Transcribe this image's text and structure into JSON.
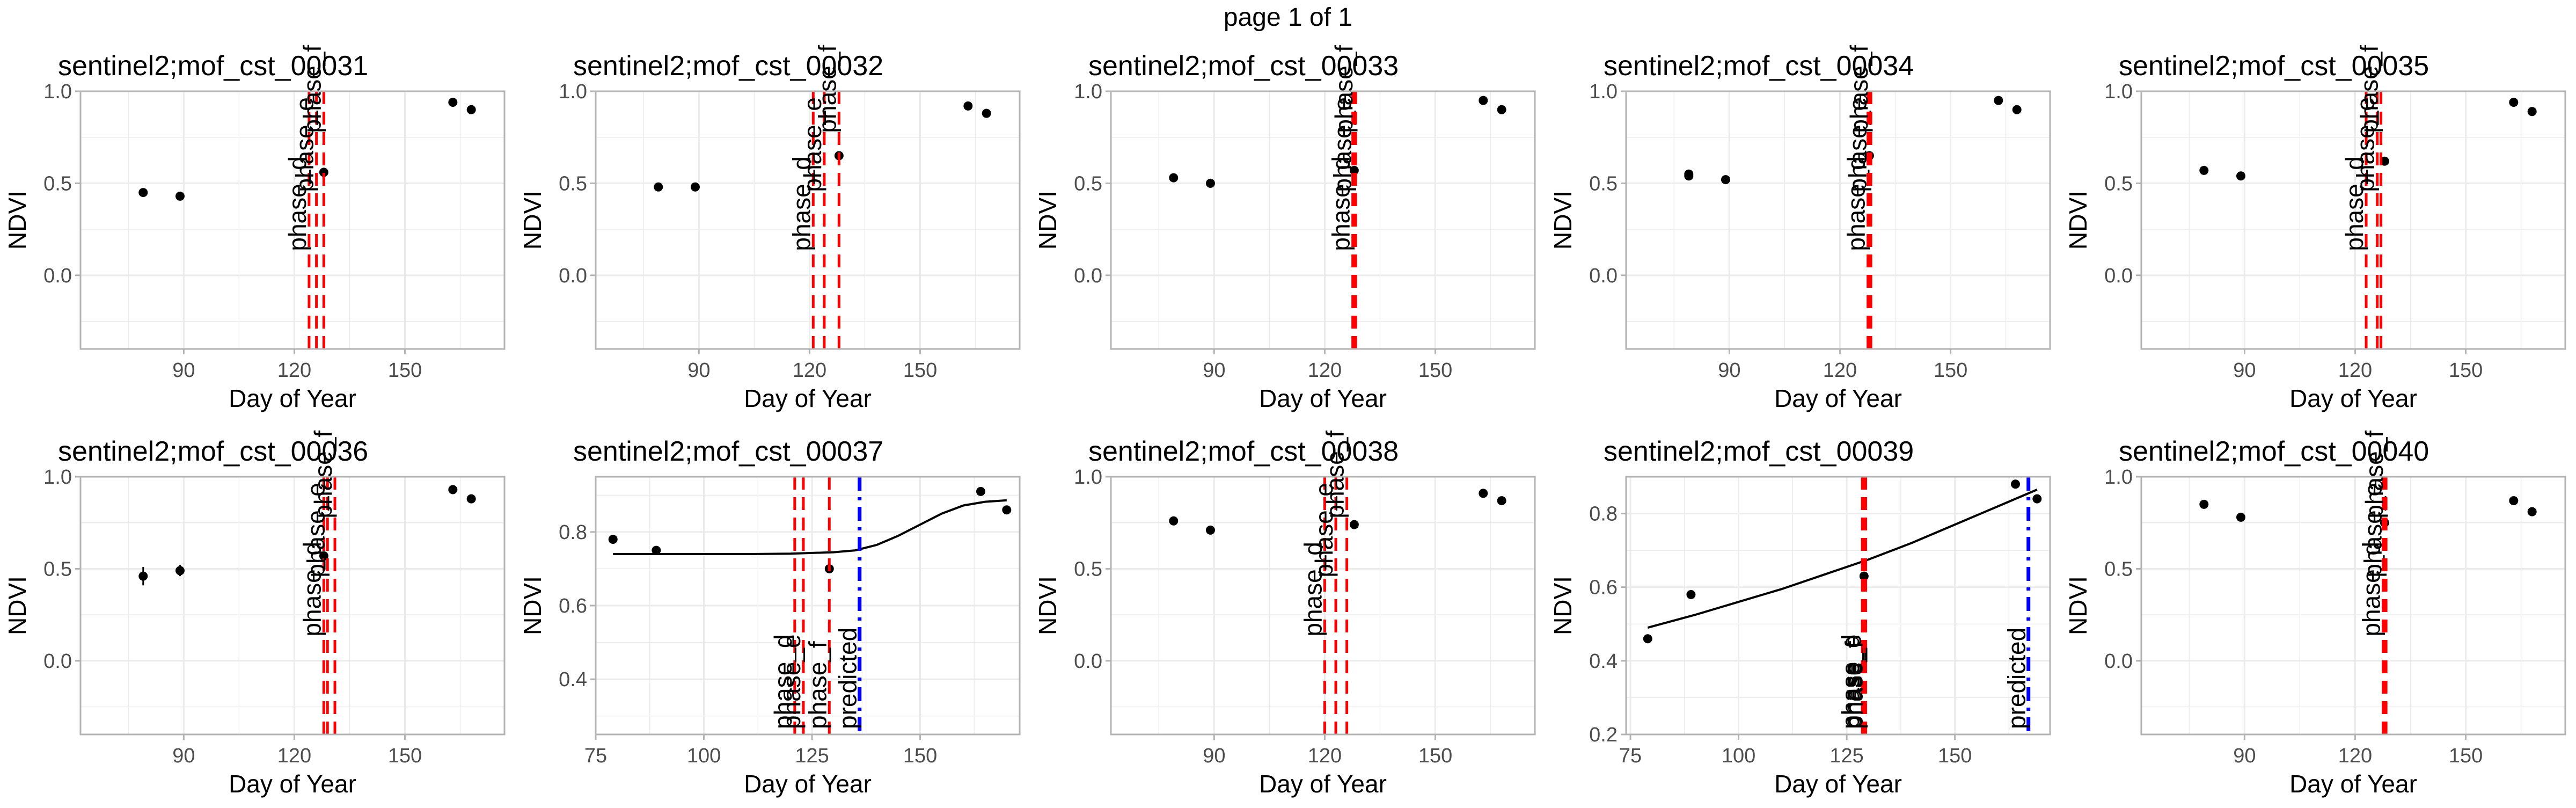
{
  "page_title": "page 1 of 1",
  "colors": {
    "point": "#000000",
    "fit_line": "#000000",
    "phase_line": "#ff0000",
    "predicted_line": "#0000ff",
    "grid": "#ebebeb",
    "panel_border": "#b3b3b3"
  },
  "chart_data": [
    {
      "type": "scatter",
      "title": "sentinel2;mof_cst_00031",
      "xlabel": "Day of Year",
      "ylabel": "NDVI",
      "xlim": [
        62,
        177
      ],
      "ylim": [
        -0.4,
        1.0
      ],
      "xticks": [
        "90",
        "120",
        "150"
      ],
      "xtick_values": [
        90,
        120,
        150
      ],
      "yticks": [
        "0.0",
        "0.5",
        "1.0"
      ],
      "ytick_values": [
        0,
        0.5,
        1.0
      ],
      "points": [
        {
          "x": 79,
          "y": 0.45
        },
        {
          "x": 89,
          "y": 0.43
        },
        {
          "x": 128,
          "y": 0.56
        },
        {
          "x": 163,
          "y": 0.94
        },
        {
          "x": 168,
          "y": 0.9
        }
      ],
      "phase_lines": [
        {
          "x": 124,
          "label": "phase_d"
        },
        {
          "x": 126,
          "label": "phase_e"
        },
        {
          "x": 128,
          "label": "phase_f"
        }
      ]
    },
    {
      "type": "scatter",
      "title": "sentinel2;mof_cst_00032",
      "xlabel": "Day of Year",
      "ylabel": "NDVI",
      "xlim": [
        62,
        177
      ],
      "ylim": [
        -0.4,
        1.0
      ],
      "xticks": [
        "90",
        "120",
        "150"
      ],
      "xtick_values": [
        90,
        120,
        150
      ],
      "yticks": [
        "0.0",
        "0.5",
        "1.0"
      ],
      "ytick_values": [
        0,
        0.5,
        1.0
      ],
      "points": [
        {
          "x": 79,
          "y": 0.48
        },
        {
          "x": 89,
          "y": 0.48
        },
        {
          "x": 128,
          "y": 0.65
        },
        {
          "x": 163,
          "y": 0.92
        },
        {
          "x": 168,
          "y": 0.88
        }
      ],
      "phase_lines": [
        {
          "x": 121,
          "label": "phase_d"
        },
        {
          "x": 124,
          "label": "phase_e"
        },
        {
          "x": 128,
          "label": "phase_f"
        }
      ]
    },
    {
      "type": "scatter",
      "title": "sentinel2;mof_cst_00033",
      "xlabel": "Day of Year",
      "ylabel": "NDVI",
      "xlim": [
        62,
        177
      ],
      "ylim": [
        -0.4,
        1.0
      ],
      "xticks": [
        "90",
        "120",
        "150"
      ],
      "xtick_values": [
        90,
        120,
        150
      ],
      "yticks": [
        "0.0",
        "0.5",
        "1.0"
      ],
      "ytick_values": [
        0,
        0.5,
        1.0
      ],
      "points": [
        {
          "x": 79,
          "y": 0.53
        },
        {
          "x": 89,
          "y": 0.5
        },
        {
          "x": 128,
          "y": 0.57
        },
        {
          "x": 163,
          "y": 0.95
        },
        {
          "x": 168,
          "y": 0.9
        }
      ],
      "phase_lines": [
        {
          "x": 127.6,
          "label": "phase_d"
        },
        {
          "x": 128,
          "label": "phase_e"
        },
        {
          "x": 128.4,
          "label": "phase_f"
        }
      ]
    },
    {
      "type": "scatter",
      "title": "sentinel2;mof_cst_00034",
      "xlabel": "Day of Year",
      "ylabel": "NDVI",
      "xlim": [
        62,
        177
      ],
      "ylim": [
        -0.4,
        1.0
      ],
      "xticks": [
        "90",
        "120",
        "150"
      ],
      "xtick_values": [
        90,
        120,
        150
      ],
      "yticks": [
        "0.0",
        "0.5",
        "1.0"
      ],
      "ytick_values": [
        0,
        0.5,
        1.0
      ],
      "points": [
        {
          "x": 79,
          "y": 0.55
        },
        {
          "x": 79,
          "y": 0.54
        },
        {
          "x": 89,
          "y": 0.52
        },
        {
          "x": 128,
          "y": 0.65
        },
        {
          "x": 163,
          "y": 0.95
        },
        {
          "x": 168,
          "y": 0.9
        }
      ],
      "phase_lines": [
        {
          "x": 127.6,
          "label": "phase_d"
        },
        {
          "x": 128,
          "label": "phase_e"
        },
        {
          "x": 128.4,
          "label": "phase_f"
        }
      ]
    },
    {
      "type": "scatter",
      "title": "sentinel2;mof_cst_00035",
      "xlabel": "Day of Year",
      "ylabel": "NDVI",
      "xlim": [
        62,
        177
      ],
      "ylim": [
        -0.4,
        1.0
      ],
      "xticks": [
        "90",
        "120",
        "150"
      ],
      "xtick_values": [
        90,
        120,
        150
      ],
      "yticks": [
        "0.0",
        "0.5",
        "1.0"
      ],
      "ytick_values": [
        0,
        0.5,
        1.0
      ],
      "points": [
        {
          "x": 79,
          "y": 0.57
        },
        {
          "x": 89,
          "y": 0.54
        },
        {
          "x": 128,
          "y": 0.62
        },
        {
          "x": 163,
          "y": 0.94
        },
        {
          "x": 168,
          "y": 0.89
        }
      ],
      "phase_lines": [
        {
          "x": 123,
          "label": "phase_d"
        },
        {
          "x": 126,
          "label": "phase_e"
        },
        {
          "x": 127,
          "label": "phase_f"
        }
      ]
    },
    {
      "type": "scatter",
      "title": "sentinel2;mof_cst_00036",
      "xlabel": "Day of Year",
      "ylabel": "NDVI",
      "xlim": [
        62,
        177
      ],
      "ylim": [
        -0.4,
        1.0
      ],
      "xticks": [
        "90",
        "120",
        "150"
      ],
      "xtick_values": [
        90,
        120,
        150
      ],
      "yticks": [
        "0.0",
        "0.5",
        "1.0"
      ],
      "ytick_values": [
        0,
        0.5,
        1.0
      ],
      "points": [
        {
          "x": 79,
          "y": 0.46,
          "err": 0.05
        },
        {
          "x": 89,
          "y": 0.49,
          "err": 0.03
        },
        {
          "x": 128,
          "y": 0.57
        },
        {
          "x": 163,
          "y": 0.93
        },
        {
          "x": 168,
          "y": 0.88
        }
      ],
      "phase_lines": [
        {
          "x": 128,
          "label": "phase_d"
        },
        {
          "x": 129,
          "label": "phase_e"
        },
        {
          "x": 131,
          "label": "phase_f"
        }
      ]
    },
    {
      "type": "line",
      "title": "sentinel2;mof_cst_00037",
      "xlabel": "Day of Year",
      "ylabel": "NDVI",
      "xlim": [
        75,
        173
      ],
      "ylim": [
        0.25,
        0.95
      ],
      "xticks": [
        "75",
        "100",
        "125",
        "150"
      ],
      "xtick_values": [
        75,
        100,
        125,
        150
      ],
      "yticks": [
        "0.4",
        "0.6",
        "0.8"
      ],
      "ytick_values": [
        0.4,
        0.6,
        0.8
      ],
      "points": [
        {
          "x": 79,
          "y": 0.78
        },
        {
          "x": 89,
          "y": 0.75
        },
        {
          "x": 129,
          "y": 0.7
        },
        {
          "x": 164,
          "y": 0.91
        },
        {
          "x": 170,
          "y": 0.86
        }
      ],
      "fit_curve": {
        "x": [
          79,
          90,
          100,
          110,
          120,
          130,
          135,
          140,
          145,
          150,
          155,
          160,
          165,
          170
        ],
        "y": [
          0.74,
          0.74,
          0.74,
          0.74,
          0.741,
          0.745,
          0.75,
          0.765,
          0.79,
          0.82,
          0.85,
          0.872,
          0.882,
          0.886
        ]
      },
      "phase_lines": [
        {
          "x": 121,
          "label": "phase_d"
        },
        {
          "x": 123,
          "label": "phase_e"
        },
        {
          "x": 129,
          "label": "phase_f"
        }
      ],
      "predicted_line": {
        "x": 136,
        "label": "predicted"
      }
    },
    {
      "type": "scatter",
      "title": "sentinel2;mof_cst_00038",
      "xlabel": "Day of Year",
      "ylabel": "NDVI",
      "xlim": [
        62,
        177
      ],
      "ylim": [
        -0.4,
        1.0
      ],
      "xticks": [
        "90",
        "120",
        "150"
      ],
      "xtick_values": [
        90,
        120,
        150
      ],
      "yticks": [
        "0.0",
        "0.5",
        "1.0"
      ],
      "ytick_values": [
        0,
        0.5,
        1.0
      ],
      "points": [
        {
          "x": 79,
          "y": 0.76
        },
        {
          "x": 89,
          "y": 0.71
        },
        {
          "x": 128,
          "y": 0.74
        },
        {
          "x": 163,
          "y": 0.91
        },
        {
          "x": 168,
          "y": 0.87
        }
      ],
      "phase_lines": [
        {
          "x": 120,
          "label": "phase_d"
        },
        {
          "x": 123,
          "label": "phase_e"
        },
        {
          "x": 126,
          "label": "phase_f"
        }
      ]
    },
    {
      "type": "line",
      "title": "sentinel2;mof_cst_00039",
      "xlabel": "Day of Year",
      "ylabel": "NDVI",
      "xlim": [
        74,
        172
      ],
      "ylim": [
        0.2,
        0.9
      ],
      "xticks": [
        "75",
        "100",
        "125",
        "150"
      ],
      "xtick_values": [
        75,
        100,
        125,
        150
      ],
      "yticks": [
        "0.2",
        "0.4",
        "0.6",
        "0.8"
      ],
      "ytick_values": [
        0.2,
        0.4,
        0.6,
        0.8
      ],
      "points": [
        {
          "x": 79,
          "y": 0.46
        },
        {
          "x": 89,
          "y": 0.58
        },
        {
          "x": 129,
          "y": 0.63
        },
        {
          "x": 164,
          "y": 0.88
        },
        {
          "x": 169,
          "y": 0.84
        }
      ],
      "fit_curve": {
        "x": [
          79,
          90,
          100,
          110,
          120,
          130,
          140,
          150,
          160,
          169
        ],
        "y": [
          0.49,
          0.525,
          0.56,
          0.595,
          0.635,
          0.675,
          0.72,
          0.77,
          0.82,
          0.865
        ]
      },
      "phase_lines": [
        {
          "x": 128.6,
          "label": "phase_d"
        },
        {
          "x": 129,
          "label": "phase_e"
        },
        {
          "x": 129.4,
          "label": "phase_f"
        }
      ],
      "predicted_line": {
        "x": 167,
        "label": "predicted"
      }
    },
    {
      "type": "scatter",
      "title": "sentinel2;mof_cst_00040",
      "xlabel": "Day of Year",
      "ylabel": "NDVI",
      "xlim": [
        62,
        177
      ],
      "ylim": [
        -0.4,
        1.0
      ],
      "xticks": [
        "90",
        "120",
        "150"
      ],
      "xtick_values": [
        90,
        120,
        150
      ],
      "yticks": [
        "0.0",
        "0.5",
        "1.0"
      ],
      "ytick_values": [
        0,
        0.5,
        1.0
      ],
      "points": [
        {
          "x": 79,
          "y": 0.85
        },
        {
          "x": 89,
          "y": 0.78
        },
        {
          "x": 128,
          "y": 0.75
        },
        {
          "x": 163,
          "y": 0.87
        },
        {
          "x": 168,
          "y": 0.81
        }
      ],
      "phase_lines": [
        {
          "x": 127.6,
          "label": "phase_d"
        },
        {
          "x": 128,
          "label": "phase_e"
        },
        {
          "x": 128.4,
          "label": "phase_f"
        }
      ]
    }
  ]
}
